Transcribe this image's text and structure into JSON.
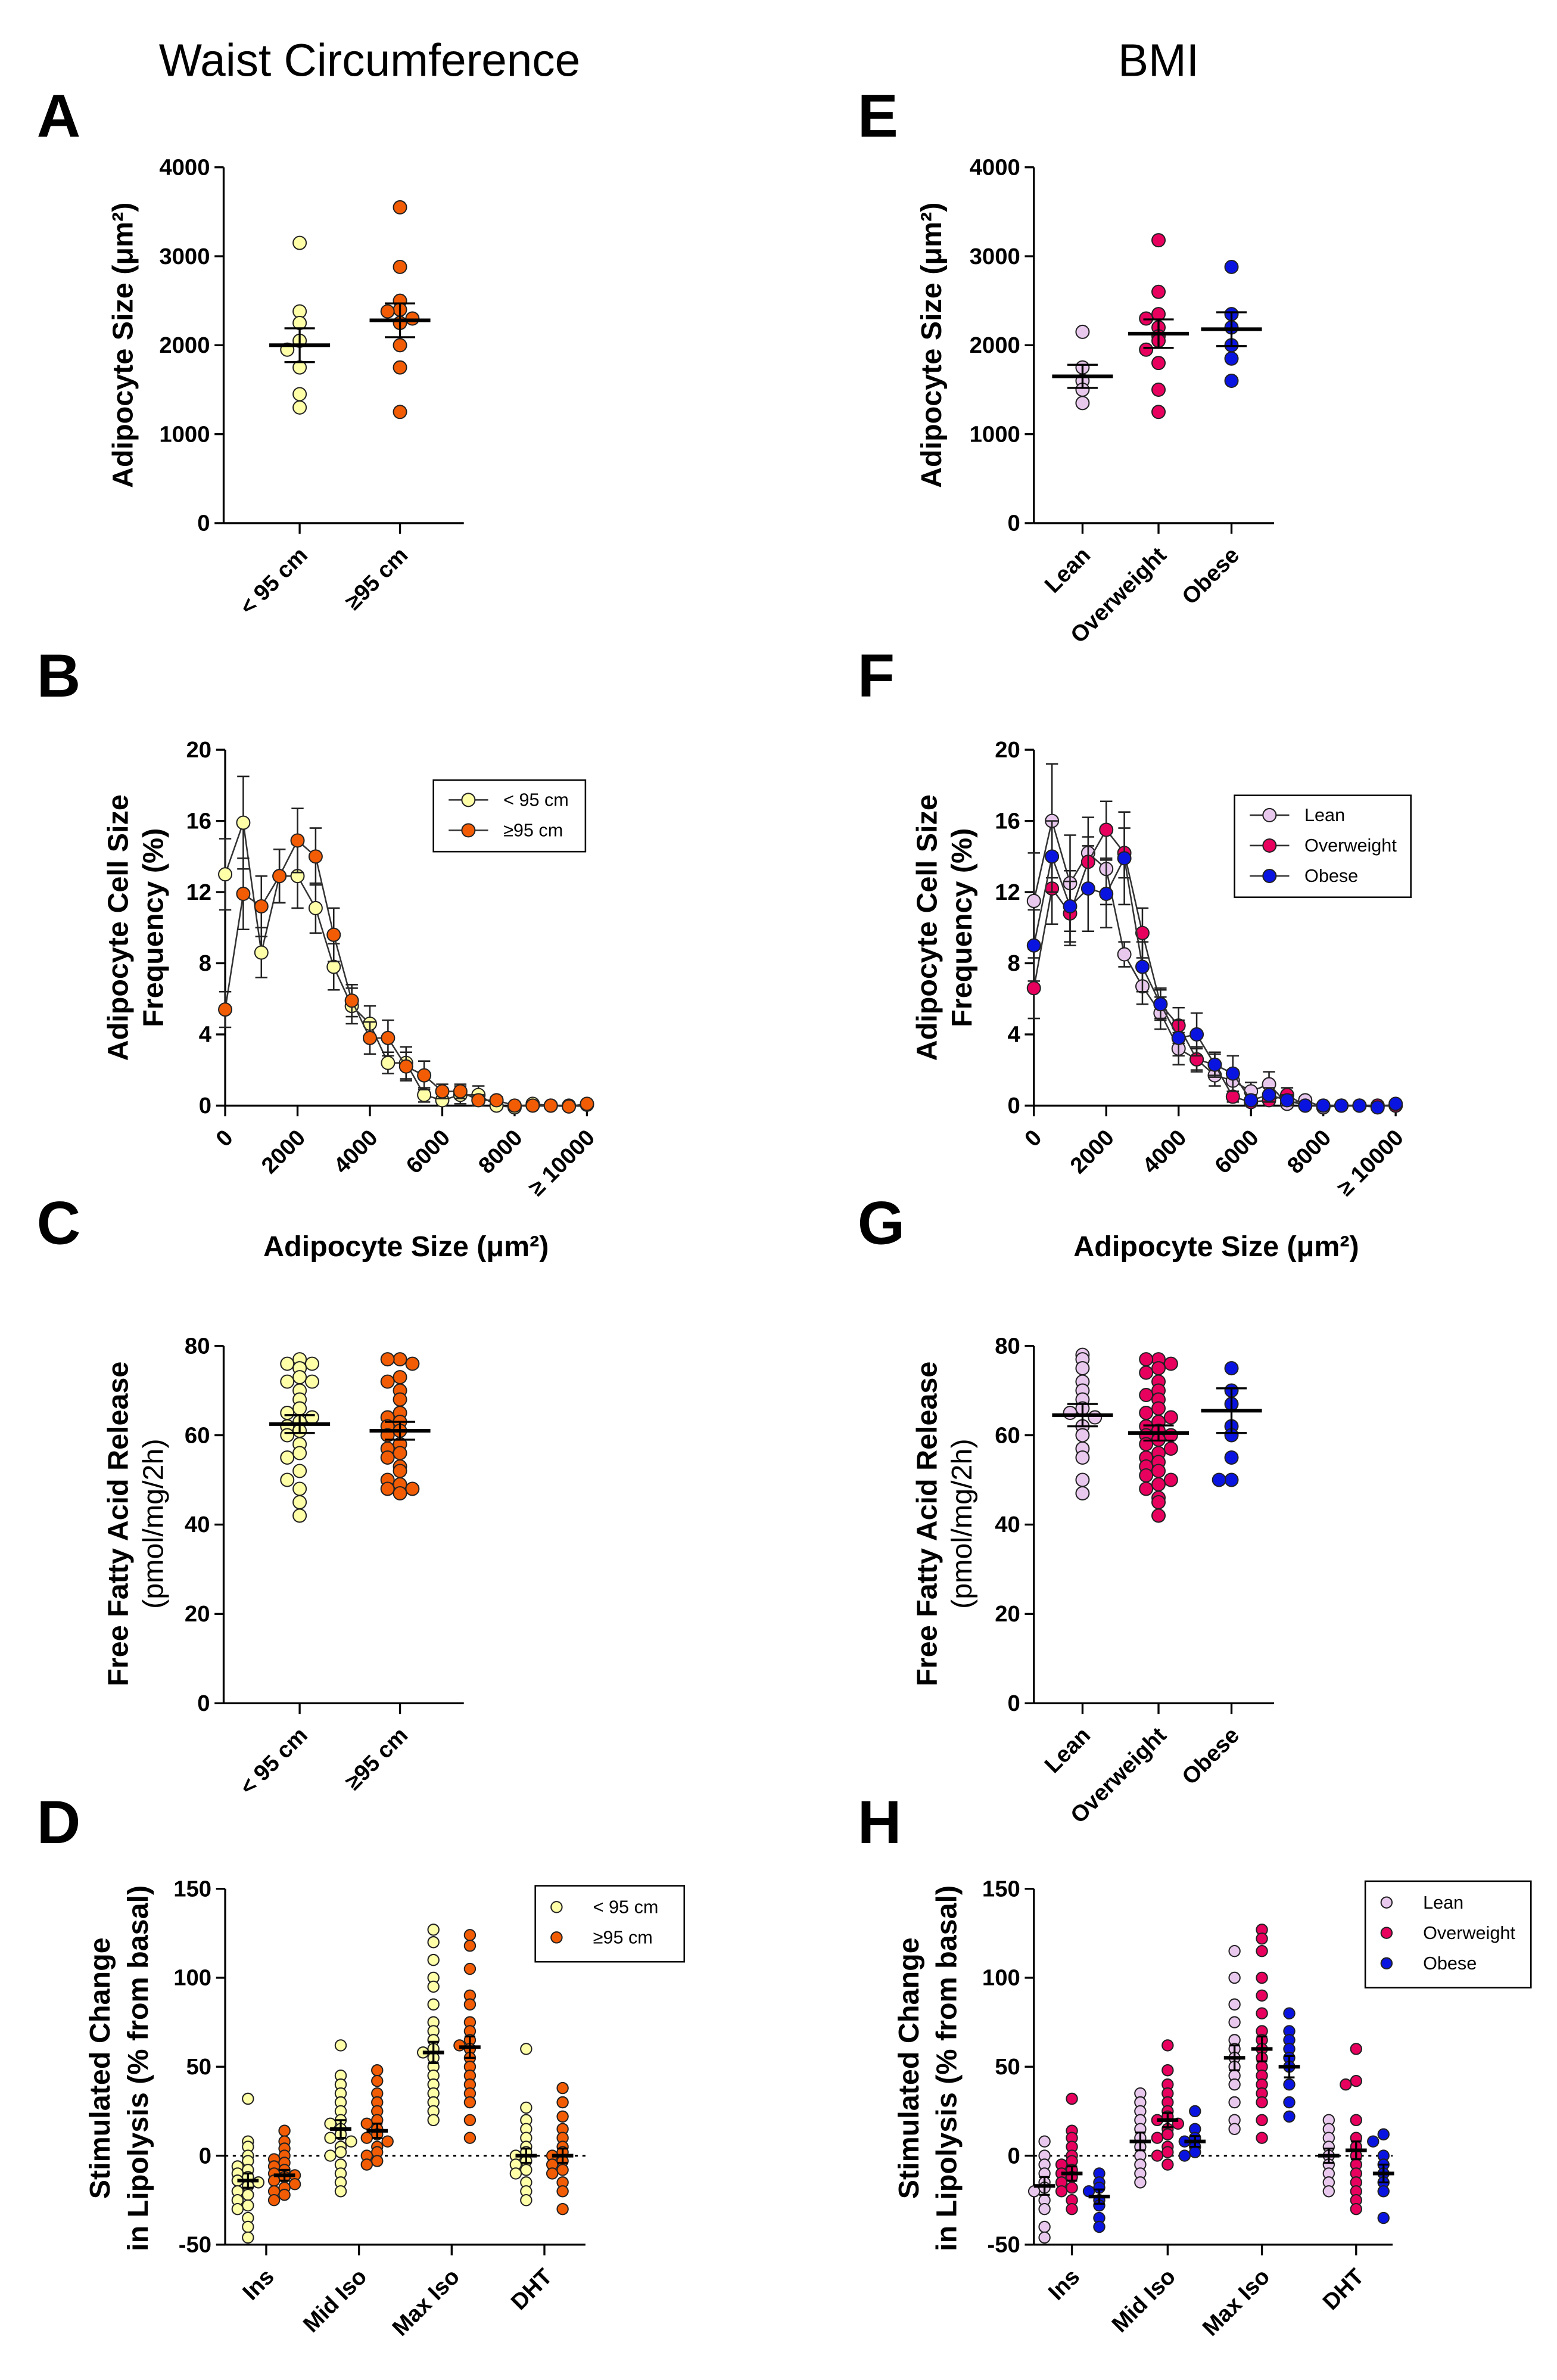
{
  "titles": {
    "left": "Waist Circumference",
    "right": "BMI"
  },
  "letters": {
    "A": "A",
    "B": "B",
    "C": "C",
    "D": "D",
    "E": "E",
    "F": "F",
    "G": "G",
    "H": "H"
  },
  "axis_titles": {
    "size": "Adipocyte Size (μm²)",
    "freq_1": "Adipocyte Cell Size",
    "freq_2": "Frequency (%)",
    "ffa_1": "Free Fatty Acid Release",
    "ffa_2": "(pmol/mg/2h)",
    "lip_1": "Stimulated Change",
    "lip_2": "in Lipolysis (% from basal)",
    "xsize": "Adipocyte Size (μm²)"
  },
  "colors": {
    "lt95": "#ffffa8",
    "ge95": "#f25c05",
    "lean": "#e9c8ee",
    "overweight": "#e8005f",
    "obese": "#0a14e0"
  },
  "chart_data": [
    {
      "panel": "A",
      "type": "scatter",
      "ylabel": "Adipocyte Size (μm²)",
      "ylim": [
        0,
        4000
      ],
      "yticks": [
        0,
        1000,
        2000,
        3000,
        4000
      ],
      "categories": [
        "< 95 cm",
        "≥95 cm"
      ],
      "groups": [
        {
          "name": "< 95 cm",
          "color": "#ffffa8",
          "points": [
            3150,
            2380,
            2250,
            2050,
            1950,
            1750,
            1450,
            1300
          ],
          "mean": 2000,
          "sem": 190
        },
        {
          "name": "≥95 cm",
          "color": "#f25c05",
          "points": [
            3550,
            2880,
            2500,
            2400,
            2380,
            2300,
            2250,
            2000,
            1750,
            1250
          ],
          "mean": 2280,
          "sem": 190
        }
      ]
    },
    {
      "panel": "E",
      "type": "scatter",
      "ylabel": "Adipocyte Size (μm²)",
      "ylim": [
        0,
        4000
      ],
      "yticks": [
        0,
        1000,
        2000,
        3000,
        4000
      ],
      "categories": [
        "Lean",
        "Overweight",
        "Obese"
      ],
      "groups": [
        {
          "name": "Lean",
          "color": "#e9c8ee",
          "points": [
            2150,
            1750,
            1600,
            1500,
            1350
          ],
          "mean": 1650,
          "sem": 130
        },
        {
          "name": "Overweight",
          "color": "#e8005f",
          "points": [
            3180,
            2600,
            2350,
            2300,
            2200,
            2100,
            2050,
            1950,
            1800,
            1500,
            1250
          ],
          "mean": 2130,
          "sem": 160
        },
        {
          "name": "Obese",
          "color": "#0a14e0",
          "points": [
            2880,
            2350,
            2200,
            2000,
            1850,
            1600
          ],
          "mean": 2180,
          "sem": 190
        }
      ]
    },
    {
      "panel": "B",
      "type": "line",
      "ylabel": "Adipocyte Cell Size Frequency (%)",
      "xlabel": "Adipocyte Size (μm²)",
      "ylim": [
        0,
        20
      ],
      "yticks": [
        0,
        4,
        8,
        12,
        16,
        20
      ],
      "xlim": [
        0,
        10000
      ],
      "xticks": [
        "0",
        "2000",
        "4000",
        "6000",
        "8000",
        "≥ 10000"
      ],
      "legend": "top-right",
      "x": [
        0,
        500,
        1000,
        1500,
        2000,
        2500,
        3000,
        3500,
        4000,
        4500,
        5000,
        5500,
        6000,
        6500,
        7000,
        7500,
        8000,
        8500,
        9000,
        9500,
        10000
      ],
      "series": [
        {
          "name": "< 95 cm",
          "color": "#ffffa8",
          "y": [
            13,
            15.9,
            8.6,
            12.9,
            12.9,
            11.1,
            7.8,
            5.6,
            4.6,
            2.4,
            2.4,
            0.6,
            0.3,
            0.6,
            0.6,
            0,
            -0.1,
            0.1,
            0,
            0,
            0.05
          ],
          "err": [
            2,
            2.6,
            1.4,
            1.5,
            1.8,
            1.4,
            1.3,
            1,
            1,
            0.6,
            0.9,
            0.4,
            0.2,
            0.5,
            0.5,
            0.1,
            0.1,
            0.1,
            0,
            0,
            0.05
          ]
        },
        {
          "name": "≥95 cm",
          "color": "#f25c05",
          "y": [
            5.4,
            11.9,
            11.2,
            12.9,
            14.9,
            14,
            9.6,
            5.9,
            3.8,
            3.8,
            2.2,
            1.7,
            0.8,
            0.8,
            0.3,
            0.3,
            0,
            0,
            0,
            -0.05,
            0.1
          ],
          "err": [
            1,
            2,
            1.7,
            1.5,
            1.8,
            1.6,
            1.5,
            0.9,
            0.9,
            1,
            0.8,
            0.8,
            0.4,
            0.4,
            0.3,
            0.2,
            0.1,
            0.1,
            0,
            0.05,
            0.1
          ]
        }
      ]
    },
    {
      "panel": "F",
      "type": "line",
      "ylabel": "Adipocyte Cell Size Frequency (%)",
      "xlabel": "Adipocyte Size (μm²)",
      "ylim": [
        0,
        20
      ],
      "yticks": [
        0,
        4,
        8,
        12,
        16,
        20
      ],
      "xlim": [
        0,
        10000
      ],
      "xticks": [
        "0",
        "2000",
        "4000",
        "6000",
        "8000",
        "≥ 10000"
      ],
      "legend": "top-right",
      "x": [
        0,
        500,
        1000,
        1500,
        2000,
        2500,
        3000,
        3500,
        4000,
        4500,
        5000,
        5500,
        6000,
        6500,
        7000,
        7500,
        8000,
        8500,
        9000,
        9500,
        10000
      ],
      "series": [
        {
          "name": "Lean",
          "color": "#e9c8ee",
          "y": [
            11.5,
            16,
            12.5,
            14.2,
            13.3,
            8.5,
            6.7,
            5.2,
            3.2,
            2.6,
            1.7,
            1.4,
            0.8,
            1.2,
            0.1,
            0.3,
            -0.1,
            0,
            0,
            0,
            0
          ],
          "err": [
            2.7,
            3.2,
            2.7,
            2,
            2,
            0.7,
            1,
            0.9,
            0.9,
            0.7,
            0.6,
            0.6,
            0.5,
            0.7,
            0.2,
            0.2,
            0.1,
            0.1,
            0,
            0,
            0
          ]
        },
        {
          "name": "Overweight",
          "color": "#e8005f",
          "y": [
            6.6,
            12.2,
            10.8,
            13.7,
            15.5,
            14.2,
            9.7,
            5.7,
            4.5,
            2.6,
            2.3,
            0.5,
            0.2,
            0.3,
            0.6,
            0,
            0,
            0,
            0,
            0,
            0
          ],
          "err": [
            1.7,
            2,
            1.8,
            1.4,
            1.6,
            1.4,
            1.4,
            0.8,
            1,
            0.6,
            0.6,
            0.3,
            0.1,
            0.2,
            0.4,
            0.1,
            0,
            0,
            0,
            0,
            0
          ]
        },
        {
          "name": "Obese",
          "color": "#0a14e0",
          "y": [
            9,
            14,
            11.2,
            12.2,
            11.9,
            13.9,
            7.8,
            5.7,
            3.8,
            4,
            2.3,
            1.8,
            0.3,
            0.6,
            0.3,
            0,
            0,
            0,
            0,
            -0.1,
            0.1
          ],
          "err": [
            2,
            2,
            2,
            2.4,
            1.9,
            2.6,
            1.4,
            0.9,
            1,
            1.2,
            0.7,
            1,
            0.3,
            0.4,
            0.3,
            0,
            0,
            0,
            0,
            0.05,
            0.1
          ]
        }
      ]
    },
    {
      "panel": "C",
      "type": "scatter",
      "ylabel": "Free Fatty Acid Release (pmol/mg/2h)",
      "ylim": [
        0,
        80
      ],
      "yticks": [
        0,
        20,
        40,
        60,
        80
      ],
      "categories": [
        "< 95 cm",
        "≥95 cm"
      ],
      "groups": [
        {
          "name": "< 95 cm",
          "color": "#ffffa8",
          "points": [
            77,
            76,
            76,
            75,
            73,
            72,
            72,
            70,
            68,
            66,
            65,
            64,
            63,
            62,
            61,
            60,
            58,
            56,
            55,
            52,
            50,
            48,
            45,
            42
          ],
          "mean": 62.5,
          "sem": 2
        },
        {
          "name": "≥95 cm",
          "color": "#f25c05",
          "points": [
            77,
            77,
            76,
            73,
            72,
            70,
            68,
            65,
            64,
            63,
            62,
            61,
            60,
            58,
            57,
            56,
            55,
            53,
            52,
            50,
            49,
            48,
            48,
            47
          ],
          "mean": 61,
          "sem": 2
        }
      ]
    },
    {
      "panel": "G",
      "type": "scatter",
      "ylabel": "Free Fatty Acid Release (pmol/mg/2h)",
      "ylim": [
        0,
        80
      ],
      "yticks": [
        0,
        20,
        40,
        60,
        80
      ],
      "categories": [
        "Lean",
        "Overweight",
        "Obese"
      ],
      "groups": [
        {
          "name": "Lean",
          "color": "#e9c8ee",
          "points": [
            78,
            77,
            75,
            72,
            70,
            68,
            66,
            65,
            64,
            62,
            60,
            57,
            55,
            50,
            47
          ],
          "mean": 64.5,
          "sem": 2.5
        },
        {
          "name": "Overweight",
          "color": "#e8005f",
          "points": [
            77,
            77,
            76,
            75,
            74,
            72,
            70,
            69,
            68,
            66,
            65,
            64,
            63,
            62,
            61,
            60,
            60,
            59,
            58,
            57,
            56,
            55,
            54,
            53,
            52,
            51,
            50,
            49,
            48,
            46,
            45,
            42
          ],
          "mean": 60.5,
          "sem": 1.7
        },
        {
          "name": "Obese",
          "color": "#0a14e0",
          "points": [
            75,
            70,
            67,
            62,
            60,
            55,
            50,
            50
          ],
          "mean": 65.5,
          "sem": 5
        }
      ]
    },
    {
      "panel": "D",
      "type": "scatter",
      "ylabel": "Stimulated Change in Lipolysis (% from basal)",
      "ylim": [
        -50,
        150
      ],
      "yticks": [
        -50,
        0,
        50,
        100,
        150
      ],
      "categories": [
        "Ins",
        "Mid Iso",
        "Max Iso",
        "DHT"
      ],
      "legend": "top-right",
      "series": [
        {
          "name": "< 95 cm",
          "color": "#ffffa8",
          "mean": [
            -14,
            15,
            58,
            0
          ],
          "sem": [
            4,
            5,
            6,
            4
          ],
          "points": [
            [
              32,
              8,
              5,
              0,
              -3,
              -6,
              -8,
              -10,
              -12,
              -14,
              -15,
              -17,
              -20,
              -22,
              -25,
              -28,
              -30,
              -35,
              -40,
              -46
            ],
            [
              62,
              45,
              40,
              35,
              30,
              25,
              20,
              18,
              15,
              12,
              10,
              8,
              5,
              2,
              0,
              -5,
              -10,
              -15,
              -20
            ],
            [
              127,
              120,
              110,
              100,
              95,
              85,
              75,
              70,
              65,
              60,
              58,
              55,
              50,
              45,
              40,
              35,
              30,
              25,
              20
            ],
            [
              60,
              27,
              20,
              15,
              10,
              5,
              2,
              0,
              -3,
              -5,
              -8,
              -10,
              -15,
              -20,
              -25
            ]
          ]
        },
        {
          "name": "≥95 cm",
          "color": "#f25c05",
          "mean": [
            -11,
            14,
            61,
            0
          ],
          "sem": [
            3,
            4,
            6,
            4
          ],
          "points": [
            [
              14,
              8,
              4,
              0,
              -2,
              -4,
              -6,
              -8,
              -10,
              -11,
              -12,
              -14,
              -16,
              -18,
              -20,
              -22,
              -25
            ],
            [
              48,
              42,
              35,
              30,
              25,
              20,
              18,
              15,
              12,
              10,
              8,
              5,
              2,
              0,
              -3,
              -5
            ],
            [
              124,
              118,
              105,
              90,
              85,
              75,
              70,
              65,
              62,
              60,
              55,
              50,
              45,
              40,
              35,
              30,
              20,
              10
            ],
            [
              38,
              30,
              22,
              15,
              10,
              5,
              2,
              0,
              -3,
              -5,
              -8,
              -10,
              -15,
              -20,
              -30
            ]
          ]
        }
      ]
    },
    {
      "panel": "H",
      "type": "scatter",
      "ylabel": "Stimulated Change in Lipolysis (% from basal)",
      "ylim": [
        -50,
        150
      ],
      "yticks": [
        -50,
        0,
        50,
        100,
        150
      ],
      "categories": [
        "Ins",
        "Mid Iso",
        "Max Iso",
        "DHT"
      ],
      "legend": "top-right",
      "series": [
        {
          "name": "Lean",
          "color": "#e9c8ee",
          "mean": [
            -17,
            8,
            55,
            0
          ],
          "sem": [
            5,
            5,
            7,
            4
          ],
          "points": [
            [
              8,
              0,
              -5,
              -10,
              -15,
              -18,
              -20,
              -25,
              -30,
              -40,
              -46
            ],
            [
              35,
              30,
              25,
              20,
              15,
              10,
              5,
              0,
              -5,
              -10,
              -15
            ],
            [
              115,
              100,
              85,
              75,
              65,
              60,
              55,
              50,
              45,
              40,
              30,
              20,
              15
            ],
            [
              20,
              15,
              10,
              5,
              0,
              -5,
              -10,
              -15,
              -20
            ]
          ]
        },
        {
          "name": "Overweight",
          "color": "#e8005f",
          "mean": [
            -10,
            20,
            60,
            3
          ],
          "sem": [
            4,
            4,
            7,
            5
          ],
          "points": [
            [
              32,
              14,
              10,
              5,
              0,
              -3,
              -5,
              -8,
              -10,
              -12,
              -15,
              -18,
              -20,
              -25,
              -30
            ],
            [
              62,
              48,
              40,
              35,
              30,
              25,
              22,
              20,
              18,
              15,
              12,
              10,
              5,
              2,
              0,
              -5
            ],
            [
              127,
              122,
              115,
              100,
              90,
              80,
              70,
              65,
              60,
              55,
              50,
              45,
              40,
              35,
              30,
              20,
              10
            ],
            [
              60,
              42,
              40,
              20,
              10,
              5,
              0,
              -5,
              -10,
              -15,
              -20,
              -25,
              -30
            ]
          ]
        },
        {
          "name": "Obese",
          "color": "#0a14e0",
          "mean": [
            -23,
            8,
            50,
            -10
          ],
          "sem": [
            4,
            3,
            6,
            5
          ],
          "points": [
            [
              -10,
              -15,
              -18,
              -20,
              -25,
              -28,
              -35,
              -40
            ],
            [
              25,
              15,
              10,
              8,
              5,
              2,
              0
            ],
            [
              80,
              70,
              65,
              60,
              55,
              50,
              40,
              30,
              22
            ],
            [
              12,
              8,
              0,
              -5,
              -10,
              -15,
              -20,
              -35
            ]
          ]
        }
      ]
    }
  ]
}
